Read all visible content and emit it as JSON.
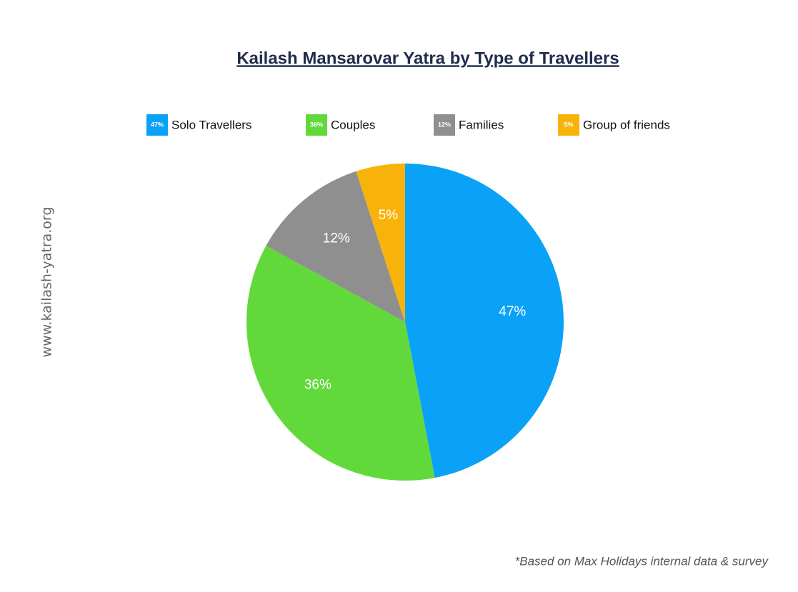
{
  "chart_data": {
    "type": "pie",
    "title": "Kailash Mansarovar Yatra by Type of Travellers",
    "categories": [
      "Solo Travellers",
      "Couples",
      "Families",
      "Group of friends"
    ],
    "values": [
      47,
      36,
      12,
      5
    ],
    "value_labels": [
      "47%",
      "36%",
      "12%",
      "5%"
    ],
    "colors": [
      "#0aa2f6",
      "#62d93a",
      "#8f8f8f",
      "#f8b30b"
    ],
    "legend": "top",
    "watermark": "www.kailash-yatra.org",
    "footnote": "*Based on Max Holidays internal data & survey"
  }
}
